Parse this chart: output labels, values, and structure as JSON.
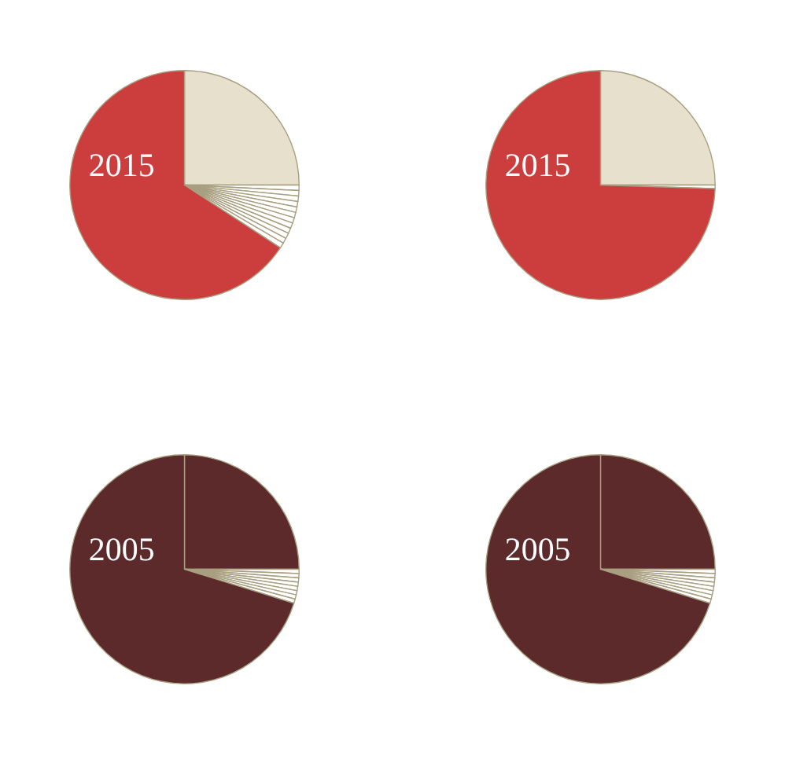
{
  "chart_data": [
    {
      "type": "pie",
      "title": "2015",
      "categories": [
        null,
        null,
        null,
        null,
        null,
        null,
        null,
        null,
        null,
        null,
        null,
        null,
        null,
        null
      ],
      "values": [
        25,
        0.77,
        0.77,
        0.77,
        0.77,
        0.77,
        0.77,
        0.77,
        0.77,
        0.77,
        0.77,
        0.77,
        0.77,
        65.76
      ],
      "colors": [
        "#e6e0cc",
        "#ffffff",
        "#ffffff",
        "#ffffff",
        "#ffffff",
        "#ffffff",
        "#ffffff",
        "#ffffff",
        "#ffffff",
        "#ffffff",
        "#ffffff",
        "#ffffff",
        "#ffffff",
        "#cc3d3d"
      ]
    },
    {
      "type": "pie",
      "title": "2015",
      "categories": [
        null,
        null,
        null
      ],
      "values": [
        25,
        0.5,
        74.5
      ],
      "colors": [
        "#e6e0cc",
        "#ffffff",
        "#cc3d3d"
      ]
    },
    {
      "type": "pie",
      "title": "2005",
      "categories": [
        null,
        null,
        null,
        null,
        null,
        null,
        null,
        null,
        null,
        null
      ],
      "values": [
        25,
        0.6,
        0.6,
        0.6,
        0.6,
        0.6,
        0.6,
        0.6,
        0.6,
        70.2
      ],
      "colors": [
        "#5c2a2a",
        "#ffffff",
        "#ffffff",
        "#ffffff",
        "#ffffff",
        "#ffffff",
        "#ffffff",
        "#ffffff",
        "#ffffff",
        "#5c2a2a"
      ]
    },
    {
      "type": "pie",
      "title": "2005",
      "categories": [
        null,
        null,
        null,
        null,
        null,
        null,
        null,
        null,
        null,
        null
      ],
      "values": [
        25,
        0.6,
        0.6,
        0.6,
        0.6,
        0.6,
        0.6,
        0.6,
        0.6,
        70.2
      ],
      "colors": [
        "#5c2a2a",
        "#ffffff",
        "#ffffff",
        "#ffffff",
        "#ffffff",
        "#ffffff",
        "#ffffff",
        "#ffffff",
        "#ffffff",
        "#5c2a2a"
      ]
    }
  ]
}
